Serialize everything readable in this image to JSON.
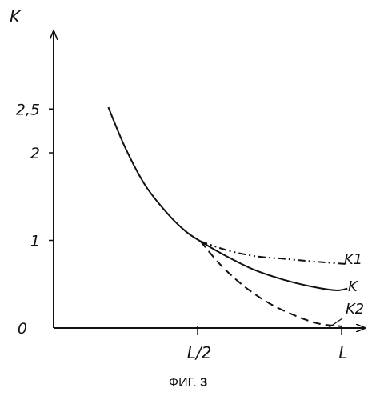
{
  "chart_data": {
    "type": "line",
    "ylabel": "K",
    "y_ticks": [
      {
        "label": "0",
        "value": 0
      },
      {
        "label": "1",
        "value": 1
      },
      {
        "label": "2",
        "value": 2
      },
      {
        "label": "2,5",
        "value": 2.5
      }
    ],
    "x_ticks": [
      {
        "label": "L/2",
        "value": 0.5
      },
      {
        "label": "L",
        "value": 1.0
      }
    ],
    "xlim": [
      0,
      1.1
    ],
    "ylim": [
      0,
      3.3
    ],
    "grid": false,
    "legend": "inline-right",
    "series": [
      {
        "name": "K",
        "style": "solid",
        "points": [
          [
            0.19,
            2.52
          ],
          [
            0.25,
            2.05
          ],
          [
            0.32,
            1.62
          ],
          [
            0.4,
            1.29
          ],
          [
            0.46,
            1.1
          ],
          [
            0.51,
            0.99
          ],
          [
            0.6,
            0.82
          ],
          [
            0.7,
            0.66
          ],
          [
            0.8,
            0.55
          ],
          [
            0.9,
            0.47
          ],
          [
            0.98,
            0.43
          ],
          [
            1.02,
            0.45
          ]
        ]
      },
      {
        "name": "K1",
        "style": "dash-dot",
        "points": [
          [
            0.51,
            0.99
          ],
          [
            0.6,
            0.89
          ],
          [
            0.7,
            0.82
          ],
          [
            0.8,
            0.79
          ],
          [
            0.9,
            0.76
          ],
          [
            1.02,
            0.73
          ]
        ]
      },
      {
        "name": "K2",
        "style": "dashed",
        "points": [
          [
            0.51,
            0.99
          ],
          [
            0.58,
            0.72
          ],
          [
            0.66,
            0.48
          ],
          [
            0.75,
            0.28
          ],
          [
            0.84,
            0.14
          ],
          [
            0.92,
            0.05
          ],
          [
            1.0,
            0.02
          ]
        ]
      }
    ]
  },
  "caption": {
    "prefix": "ФИГ.",
    "number": "3"
  }
}
